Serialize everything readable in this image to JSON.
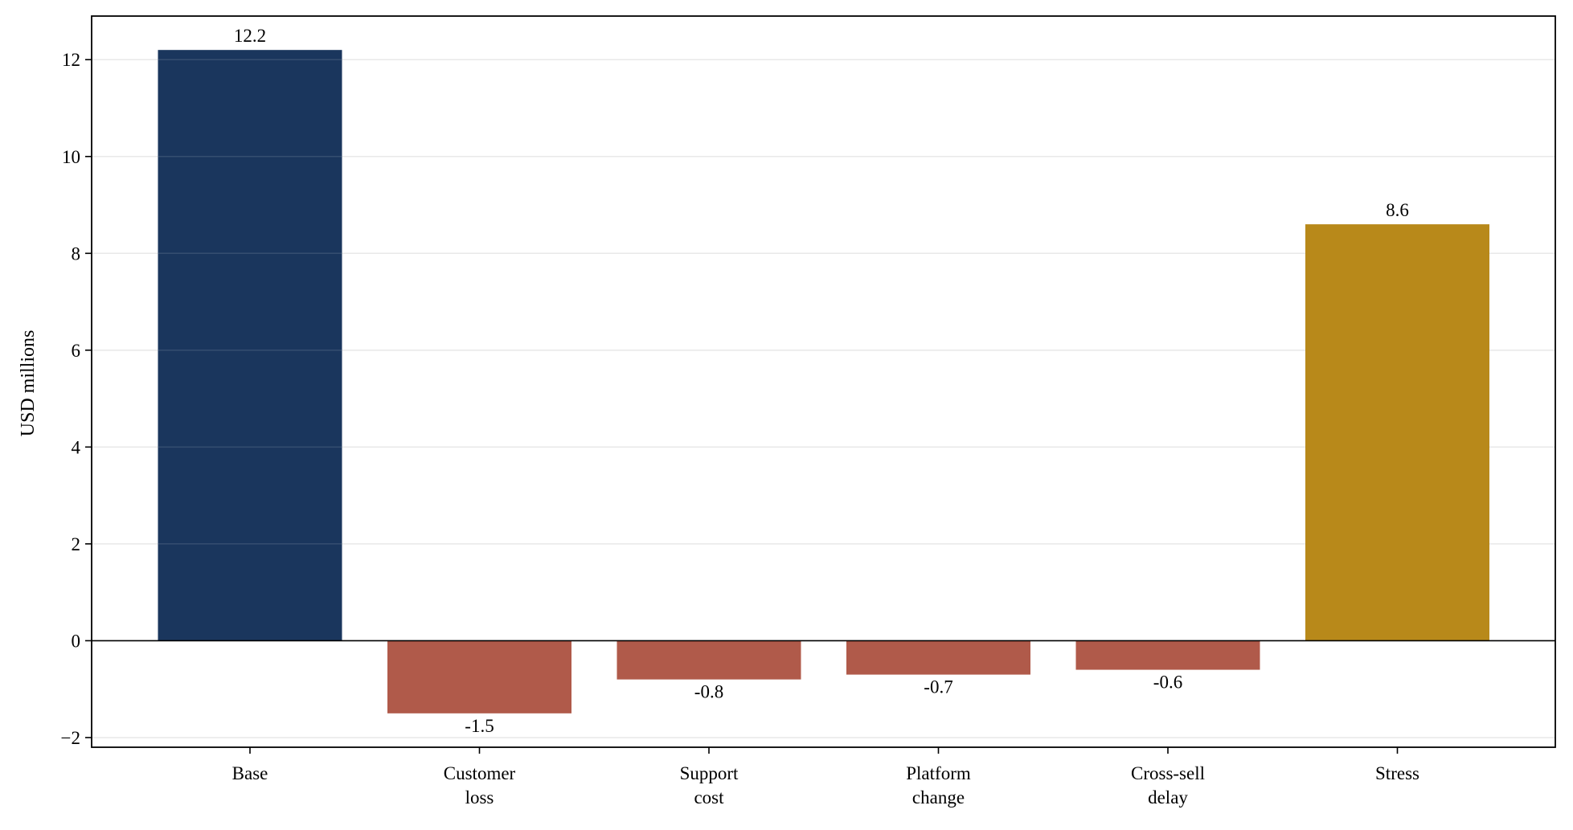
{
  "chart_data": {
    "type": "bar",
    "categories": [
      [
        "Base"
      ],
      [
        "Customer",
        "loss"
      ],
      [
        "Support",
        "cost"
      ],
      [
        "Platform",
        "change"
      ],
      [
        "Cross-sell",
        "delay"
      ],
      [
        "Stress"
      ]
    ],
    "values": [
      12.2,
      -1.5,
      -0.8,
      -0.7,
      -0.6,
      8.6
    ],
    "value_labels": [
      "12.2",
      "-1.5",
      "-0.8",
      "-0.7",
      "-0.6",
      "8.6"
    ],
    "bar_colors": [
      "#1a365d",
      "#b05a4a",
      "#b05a4a",
      "#b05a4a",
      "#b05a4a",
      "#b8891a"
    ],
    "title": "",
    "xlabel": "",
    "ylabel": "USD millions",
    "ylim": [
      -2.2,
      12.9
    ],
    "yticks": [
      -2,
      0,
      2,
      4,
      6,
      8,
      10,
      12
    ],
    "ytick_labels": [
      "−2",
      "0",
      "2",
      "4",
      "6",
      "8",
      "10",
      "12"
    ],
    "grid": "horizontal",
    "legend": "none",
    "zero_line": true
  }
}
